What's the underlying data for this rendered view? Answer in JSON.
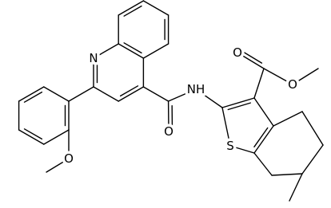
{
  "atoms": [
    {
      "label": "N"
    },
    {
      "label": "O"
    },
    {
      "label": "NH"
    },
    {
      "label": "O"
    },
    {
      "label": "O"
    },
    {
      "label": "S"
    },
    {
      "label": "O"
    }
  ]
}
